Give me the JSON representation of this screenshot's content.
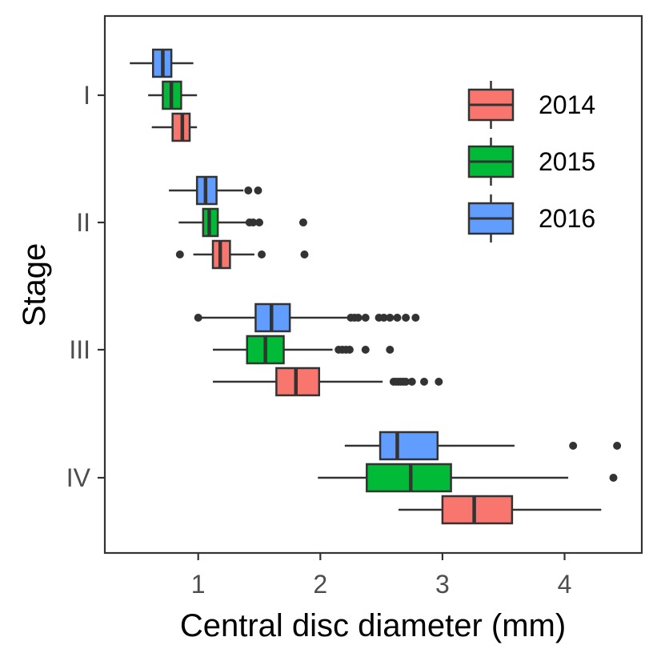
{
  "chart_data": {
    "type": "boxplot",
    "orientation": "horizontal",
    "xlabel": "Central disc diameter (mm)",
    "ylabel": "Stage",
    "xlim": [
      0.3,
      4.65
    ],
    "xticks": [
      1,
      2,
      3,
      4
    ],
    "categories": [
      "I",
      "II",
      "III",
      "IV"
    ],
    "grid": false,
    "legend_position": "top-right",
    "series": [
      {
        "name": "2014",
        "color": "#F8766D",
        "boxes": [
          {
            "stage": "I",
            "whisker_low": 0.62,
            "q1": 0.79,
            "median": 0.87,
            "q3": 0.93,
            "whisker_high": 0.99,
            "outliers": []
          },
          {
            "stage": "II",
            "whisker_low": 0.96,
            "q1": 1.12,
            "median": 1.18,
            "q3": 1.26,
            "whisker_high": 1.46,
            "outliers": [
              0.85,
              1.52,
              1.87
            ]
          },
          {
            "stage": "III",
            "whisker_low": 1.12,
            "q1": 1.64,
            "median": 1.8,
            "q3": 1.99,
            "whisker_high": 2.51,
            "outliers": [
              2.6,
              2.62,
              2.64,
              2.66,
              2.68,
              2.7,
              2.75,
              2.85,
              2.97
            ]
          },
          {
            "stage": "IV",
            "whisker_low": 2.64,
            "q1": 3.0,
            "median": 3.26,
            "q3": 3.57,
            "whisker_high": 4.3,
            "outliers": []
          }
        ]
      },
      {
        "name": "2015",
        "color": "#00BA38",
        "boxes": [
          {
            "stage": "I",
            "whisker_low": 0.59,
            "q1": 0.71,
            "median": 0.78,
            "q3": 0.86,
            "whisker_high": 0.99,
            "outliers": []
          },
          {
            "stage": "II",
            "whisker_low": 0.84,
            "q1": 1.04,
            "median": 1.09,
            "q3": 1.16,
            "whisker_high": 1.4,
            "outliers": [
              1.42,
              1.45,
              1.5,
              1.86
            ]
          },
          {
            "stage": "III",
            "whisker_low": 1.12,
            "q1": 1.4,
            "median": 1.55,
            "q3": 1.7,
            "whisker_high": 2.1,
            "outliers": [
              2.15,
              2.18,
              2.21,
              2.24,
              2.37,
              2.57
            ]
          },
          {
            "stage": "IV",
            "whisker_low": 1.98,
            "q1": 2.38,
            "median": 2.74,
            "q3": 3.07,
            "whisker_high": 4.03,
            "outliers": [
              4.4
            ]
          }
        ]
      },
      {
        "name": "2016",
        "color": "#619CFF",
        "boxes": [
          {
            "stage": "I",
            "whisker_low": 0.44,
            "q1": 0.63,
            "median": 0.71,
            "q3": 0.78,
            "whisker_high": 0.96,
            "outliers": []
          },
          {
            "stage": "II",
            "whisker_low": 0.76,
            "q1": 0.99,
            "median": 1.06,
            "q3": 1.15,
            "whisker_high": 1.37,
            "outliers": [
              1.41,
              1.49
            ]
          },
          {
            "stage": "III",
            "whisker_low": 1.0,
            "q1": 1.47,
            "median": 1.6,
            "q3": 1.75,
            "whisker_high": 2.22,
            "outliers": [
              1.0,
              2.25,
              2.28,
              2.31,
              2.37,
              2.48,
              2.52,
              2.57,
              2.63,
              2.7,
              2.78
            ]
          },
          {
            "stage": "IV",
            "whisker_low": 2.2,
            "q1": 2.49,
            "median": 2.63,
            "q3": 2.96,
            "whisker_high": 3.59,
            "outliers": [
              4.07,
              4.43
            ]
          }
        ]
      }
    ]
  }
}
